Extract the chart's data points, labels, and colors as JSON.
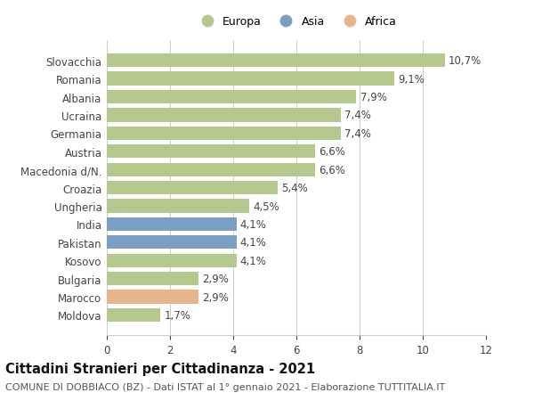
{
  "categories": [
    "Slovacchia",
    "Romania",
    "Albania",
    "Ucraina",
    "Germania",
    "Austria",
    "Macedonia d/N.",
    "Croazia",
    "Ungheria",
    "India",
    "Pakistan",
    "Kosovo",
    "Bulgaria",
    "Marocco",
    "Moldova"
  ],
  "values": [
    10.7,
    9.1,
    7.9,
    7.4,
    7.4,
    6.6,
    6.6,
    5.4,
    4.5,
    4.1,
    4.1,
    4.1,
    2.9,
    2.9,
    1.7
  ],
  "labels": [
    "10,7%",
    "9,1%",
    "7,9%",
    "7,4%",
    "7,4%",
    "6,6%",
    "6,6%",
    "5,4%",
    "4,5%",
    "4,1%",
    "4,1%",
    "4,1%",
    "2,9%",
    "2,9%",
    "1,7%"
  ],
  "continents": [
    "Europa",
    "Europa",
    "Europa",
    "Europa",
    "Europa",
    "Europa",
    "Europa",
    "Europa",
    "Europa",
    "Asia",
    "Asia",
    "Europa",
    "Europa",
    "Africa",
    "Europa"
  ],
  "colors": {
    "Europa": "#b5c98e",
    "Asia": "#7a9fc2",
    "Africa": "#e8b48a"
  },
  "xlim": [
    0,
    12
  ],
  "xticks": [
    0,
    2,
    4,
    6,
    8,
    10,
    12
  ],
  "title_main": "Cittadini Stranieri per Cittadinanza - 2021",
  "title_sub": "COMUNE DI DOBBIACO (BZ) - Dati ISTAT al 1° gennaio 2021 - Elaborazione TUTTITALIA.IT",
  "background_color": "#ffffff",
  "grid_color": "#cccccc",
  "bar_height": 0.75,
  "label_fontsize": 8.5,
  "tick_fontsize": 8.5,
  "title_fontsize": 10.5,
  "subtitle_fontsize": 8.0
}
